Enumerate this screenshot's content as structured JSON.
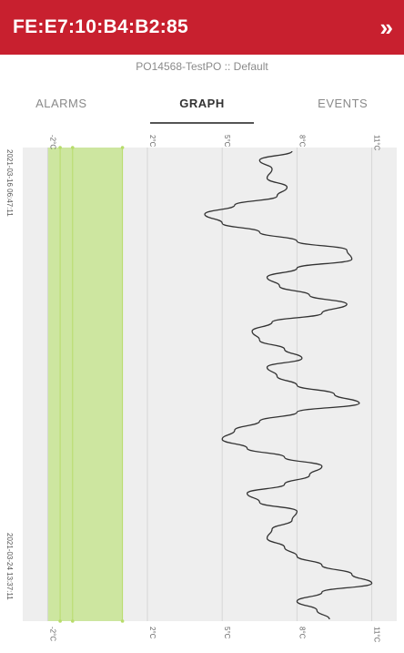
{
  "header": {
    "device_id": "FE:E7:10:B4:B2:85",
    "chevron_icon": "double-chevron-right-icon"
  },
  "subtitle": "PO14568-TestPO :: Default",
  "tabs": [
    {
      "label": "ALARMS",
      "active": false
    },
    {
      "label": "GRAPH",
      "active": true
    },
    {
      "label": "EVENTS",
      "active": false
    }
  ],
  "colors": {
    "header_bg": "#c8202f",
    "acceptable_band": "#cde6a0",
    "trace": "#333333",
    "plot_bg": "#eeeeee"
  },
  "chart_data": {
    "type": "line",
    "orientation": "vertical-time",
    "time_labels": [
      "2021-03-16 06:47:11",
      "2021-03-24 13:37:11"
    ],
    "value_ticks": [
      "-2°C",
      "2°C",
      "5°C",
      "8°C",
      "11°C"
    ],
    "value_range": [
      -3,
      12
    ],
    "acceptable_range": [
      -2,
      1
    ],
    "acceptable_markers": [
      -1.5,
      -1,
      1
    ],
    "series": [
      {
        "values": [
          7.8,
          6.5,
          7.0,
          6.8,
          7.6,
          7.2,
          5.5,
          4.3,
          5.0,
          6.5,
          8.0,
          10.0,
          10.2,
          8.0,
          6.8,
          7.3,
          8.5,
          10.0,
          9.0,
          7.0,
          6.2,
          6.5,
          7.5,
          8.2,
          6.8,
          7.2,
          8.0,
          9.5,
          10.5,
          8.0,
          6.5,
          5.5,
          5.0,
          6.0,
          7.5,
          9.0,
          8.5,
          7.5,
          6.0,
          6.5,
          8.0,
          7.8,
          7.0,
          6.8,
          7.5,
          8.0,
          9.0,
          10.2,
          11.0,
          9.0,
          8.0,
          8.8,
          9.3
        ]
      }
    ],
    "grid": true
  }
}
